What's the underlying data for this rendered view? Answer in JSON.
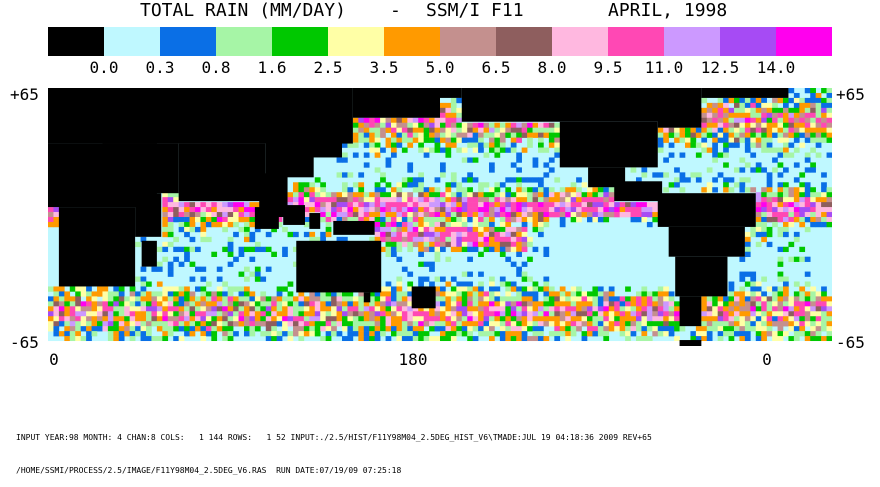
{
  "title": {
    "part1": "TOTAL RAIN (MM/DAY)",
    "sep": "-",
    "part2": "SSM/I F11",
    "date": "APRIL, 1998"
  },
  "legend": {
    "colors": [
      "#000000",
      "#bff8ff",
      "#0a6fe6",
      "#a6f5a6",
      "#00c800",
      "#ffffa6",
      "#ff9a00",
      "#c4908e",
      "#8e5e5e",
      "#ffb8e0",
      "#ff48b4",
      "#cc99ff",
      "#a64bf4",
      "#ff00ee"
    ],
    "labels": [
      "0.0",
      "0.3",
      "0.8",
      "1.6",
      "2.5",
      "3.5",
      "5.0",
      "6.5",
      "8.0",
      "9.5",
      "11.0",
      "12.5",
      "14.0"
    ]
  },
  "axes": {
    "lat_top": "+65",
    "lat_bottom": "-65",
    "lon_left": "0",
    "lon_mid": "180",
    "lon_right": "0"
  },
  "map": {
    "lon_range": [
      0,
      360
    ],
    "lat_range": [
      -65,
      65
    ],
    "cell_deg": 2.5,
    "land_color": "#000000",
    "ocean_base_color": "#bff8ff",
    "ice_color": "#ffffff"
  },
  "footer": {
    "line1": "INPUT YEAR:98 MONTH: 4 CHAN:8 COLS:   1 144 ROWS:   1 52 INPUT:./2.5/HIST/F11Y98M04_2.5DEG_HIST_V6\\TMADE:JUL 19 04:18:36 2009 REV+65",
    "line2": "/HOME/SSMI/PROCESS/2.5/IMAGE/F11Y98M04_2.5DEG_V6.RAS  RUN DATE:07/19/09 07:25:18"
  }
}
